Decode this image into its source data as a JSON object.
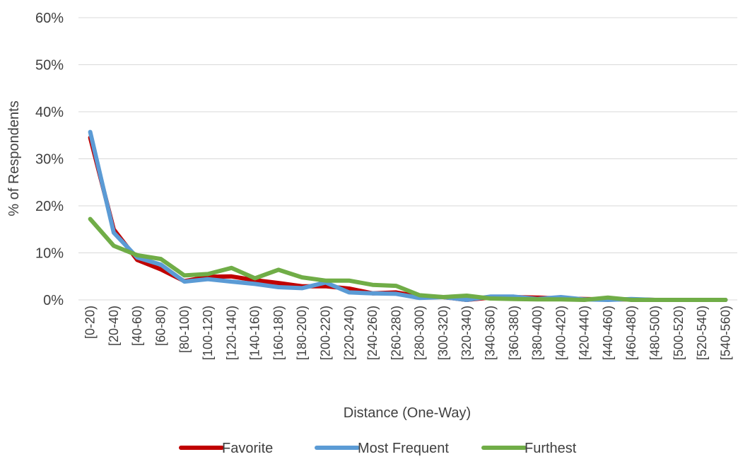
{
  "chart_data": {
    "type": "line",
    "xlabel": "Distance (One-Way)",
    "ylabel": "% of Respondents",
    "ylim": [
      0,
      60
    ],
    "y_tick_labels": [
      "0%",
      "10%",
      "20%",
      "30%",
      "40%",
      "50%",
      "60%"
    ],
    "y_ticks": [
      0,
      10,
      20,
      30,
      40,
      50,
      60
    ],
    "grid": "horizontal",
    "legend_position": "bottom",
    "categories": [
      "[0-20)",
      "[20-40)",
      "[40-60)",
      "[60-80)",
      "[80-100)",
      "[100-120)",
      "[120-140)",
      "[140-160)",
      "[160-180)",
      "[180-200)",
      "[200-220)",
      "[220-240)",
      "[240-260)",
      "[260-280)",
      "[280-300)",
      "[300-320)",
      "[320-340)",
      "[340-360)",
      "[360-380)",
      "[380-400)",
      "[400-420)",
      "[420-440)",
      "[440-460)",
      "[460-480)",
      "[480-500)",
      "[500-520)",
      "[520-540)",
      "[540-560)"
    ],
    "series": [
      {
        "name": "Favorite",
        "color": "#c00000",
        "values": [
          34.5,
          15.0,
          8.5,
          6.5,
          4.0,
          4.9,
          5.0,
          4.2,
          3.6,
          2.9,
          2.9,
          2.4,
          1.4,
          1.6,
          0.7,
          0.6,
          0.0,
          0.5,
          0.6,
          0.5,
          0.3,
          0.2,
          0.1,
          0.1,
          0.0,
          0.0,
          0.0,
          0.0
        ]
      },
      {
        "name": "Most Frequent",
        "color": "#5b9bd5",
        "values": [
          35.7,
          14.3,
          9.0,
          7.5,
          3.9,
          4.4,
          3.9,
          3.4,
          2.7,
          2.5,
          3.7,
          1.6,
          1.4,
          1.3,
          0.4,
          0.6,
          0.0,
          0.7,
          0.7,
          0.2,
          0.6,
          0.1,
          0.0,
          0.2,
          0.0,
          0.0,
          0.0,
          0.0
        ]
      },
      {
        "name": "Furthest",
        "color": "#70ad47",
        "values": [
          17.2,
          11.5,
          9.5,
          8.7,
          5.2,
          5.5,
          6.8,
          4.6,
          6.4,
          4.8,
          4.1,
          4.1,
          3.2,
          3.0,
          1.0,
          0.6,
          0.9,
          0.3,
          0.2,
          0.1,
          0.1,
          0.0,
          0.5,
          0.0,
          0.0,
          0.0,
          0.0,
          0.0
        ]
      }
    ],
    "gridline_color": "#d9d9d9"
  }
}
